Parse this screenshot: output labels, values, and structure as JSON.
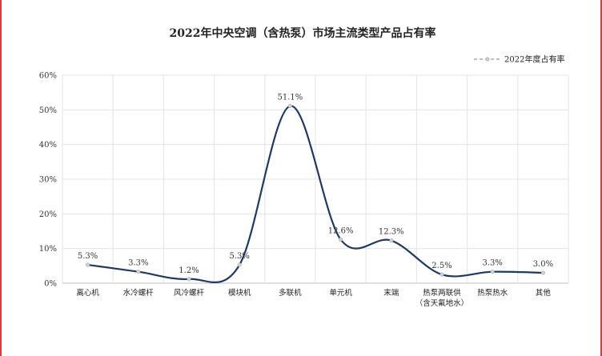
{
  "chart_data": {
    "type": "line",
    "title": "2022年中央空调（含热泵）市场主流类型产品占有率",
    "categories": [
      [
        "离心机"
      ],
      [
        "水冷螺杆"
      ],
      [
        "风冷螺杆"
      ],
      [
        "模块机"
      ],
      [
        "多联机"
      ],
      [
        "单元机"
      ],
      [
        "末端"
      ],
      [
        "热泵两联供",
        "（含天氟地水）"
      ],
      [
        "热泵热水"
      ],
      [
        "其他"
      ]
    ],
    "series": [
      {
        "name": "2022年度占有率",
        "values": [
          5.3,
          3.3,
          1.2,
          5.3,
          51.1,
          12.6,
          12.3,
          2.5,
          3.3,
          3.0
        ],
        "labels": [
          "5.3%",
          "3.3%",
          "1.2%",
          "5.3%",
          "51.1%",
          "12.6%",
          "12.3%",
          "2.5%",
          "3.3%",
          "3.0%"
        ]
      }
    ],
    "yticks": [
      "0%",
      "10%",
      "20%",
      "30%",
      "40%",
      "50%",
      "60%"
    ],
    "ylim": [
      0,
      60
    ],
    "smooth": true,
    "grid": true,
    "legend_position": "top-right",
    "line_color": "#1f3864",
    "marker_color": "#d0d0d0"
  }
}
